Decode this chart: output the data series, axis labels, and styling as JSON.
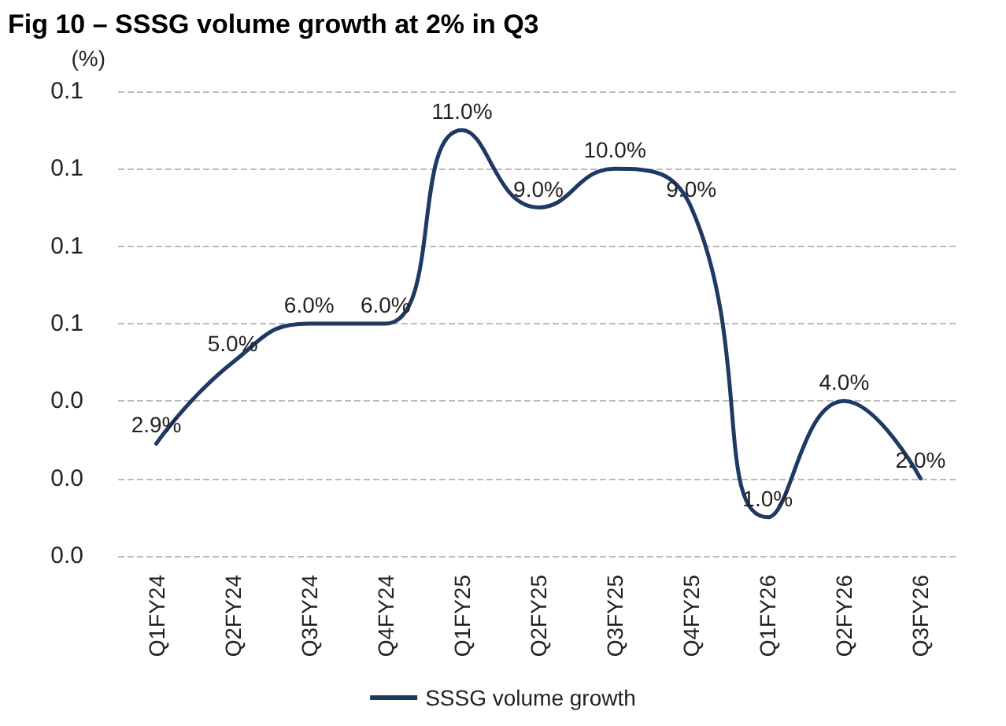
{
  "chart_data": {
    "type": "line",
    "title": "Fig 10 – SSSG volume growth at 2% in Q3",
    "ylabel": "(%)",
    "categories": [
      "Q1FY24",
      "Q2FY24",
      "Q3FY24",
      "Q4FY24",
      "Q1FY25",
      "Q2FY25",
      "Q3FY25",
      "Q4FY25",
      "Q1FY26",
      "Q2FY26",
      "Q3FY26"
    ],
    "series": [
      {
        "name": "SSSG volume growth",
        "color": "#1f3864",
        "values": [
          0.029,
          0.05,
          0.06,
          0.06,
          0.11,
          0.09,
          0.1,
          0.09,
          0.01,
          0.04,
          0.02
        ],
        "value_labels": [
          "2.9%",
          "5.0%",
          "6.0%",
          "6.0%",
          "11.0%",
          "9.0%",
          "10.0%",
          "9.0%",
          "1.0%",
          "4.0%",
          "2.0%"
        ]
      }
    ],
    "ylim": [
      0,
      0.12
    ],
    "yticks": [
      {
        "value": 0,
        "label": "0.0"
      },
      {
        "value": 0.02,
        "label": "0.0"
      },
      {
        "value": 0.04,
        "label": "0.0"
      },
      {
        "value": 0.06,
        "label": "0.1"
      },
      {
        "value": 0.08,
        "label": "0.1"
      },
      {
        "value": 0.1,
        "label": "0.1"
      },
      {
        "value": 0.12,
        "label": "0.1"
      }
    ],
    "grid": "y",
    "legend": "bottom",
    "marker": "none",
    "line_style": "solid"
  }
}
